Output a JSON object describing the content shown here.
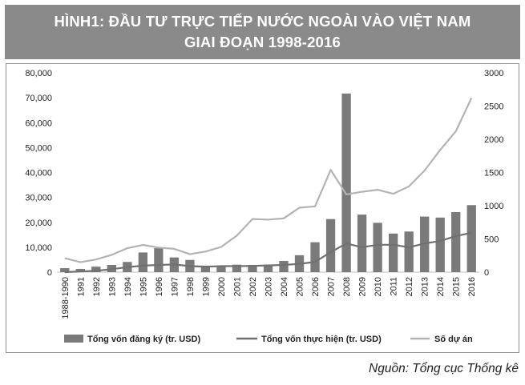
{
  "title_lines": [
    "HÌNH1: ĐẦU TƯ TRỰC TIẾP NƯỚC NGOÀI VÀO VIỆT NAM",
    "GIAI ĐOẠN 1998-2016"
  ],
  "source": "Nguồn: Tổng cục Thống kê",
  "colors": {
    "header_bg": "#8a8a8a",
    "bar": "#7a7a7a",
    "line_realized": "#707070",
    "line_projects": "#b3b3b3"
  },
  "chart_data": {
    "type": "bar",
    "categories": [
      "1988-1990",
      "1991",
      "1992",
      "1993",
      "1994",
      "1995",
      "1996",
      "1997",
      "1998",
      "1999",
      "2000",
      "2001",
      "2002",
      "2003",
      "2004",
      "2005",
      "2006",
      "2007",
      "2008",
      "2009",
      "2010",
      "2011",
      "2012",
      "2013",
      "2014",
      "2015",
      "2016"
    ],
    "y_left": {
      "min": 0,
      "max": 80000,
      "ticks": [
        "0",
        "10,000",
        "20,000",
        "30,000",
        "40,000",
        "50,000",
        "60,000",
        "70,000",
        "80,000"
      ]
    },
    "y_right": {
      "min": 0,
      "max": 3000,
      "ticks": [
        "0",
        "500",
        "1000",
        "1500",
        "2000",
        "2500",
        "3000"
      ]
    },
    "series": [
      {
        "name": "Tổng vốn đăng ký (tr. USD)",
        "kind": "bar",
        "axis": "left",
        "values": [
          1600,
          1300,
          2200,
          2900,
          4100,
          7900,
          9600,
          5900,
          4900,
          2600,
          2400,
          3000,
          2900,
          3000,
          4500,
          6800,
          12000,
          21300,
          71700,
          23100,
          19800,
          15500,
          16300,
          22300,
          21900,
          24100,
          26900
        ]
      },
      {
        "name": "Tổng vốn thực hiện (tr. USD)",
        "kind": "line",
        "axis": "left",
        "values": [
          0,
          300,
          500,
          1200,
          2000,
          2600,
          2900,
          3100,
          2400,
          2200,
          2400,
          2400,
          2500,
          2700,
          2900,
          3300,
          4100,
          8000,
          11500,
          10000,
          11000,
          11000,
          10000,
          11500,
          12500,
          14500,
          15800
        ]
      },
      {
        "name": "Số dự án",
        "kind": "line",
        "axis": "right",
        "values": [
          210,
          150,
          190,
          260,
          360,
          410,
          370,
          350,
          270,
          310,
          380,
          550,
          800,
          790,
          810,
          970,
          990,
          1540,
          1170,
          1210,
          1240,
          1180,
          1290,
          1530,
          1840,
          2120,
          2620
        ]
      }
    ],
    "legend_position": "bottom",
    "grid": false
  }
}
